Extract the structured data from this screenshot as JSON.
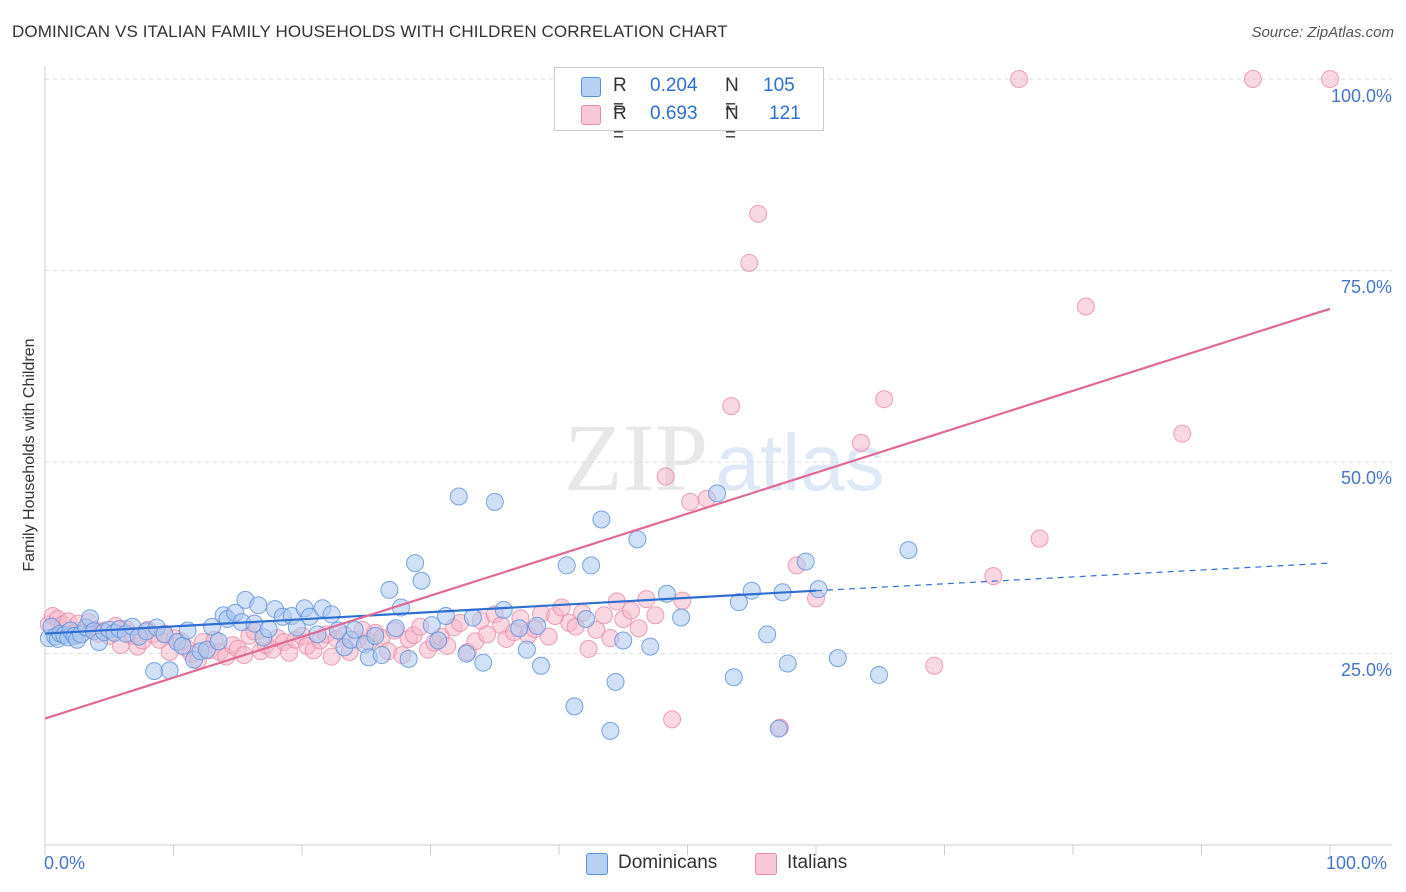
{
  "title": "DOMINICAN VS ITALIAN FAMILY HOUSEHOLDS WITH CHILDREN CORRELATION CHART",
  "source": "Source: ZipAtlas.com",
  "watermark": {
    "zip": "ZIP",
    "atlas": "atlas"
  },
  "legend": {
    "dominicans": {
      "r_label": "R =",
      "r_value": "0.204",
      "n_label": "N =",
      "n_value": "105"
    },
    "italians": {
      "r_label": "R =",
      "r_value": "0.693",
      "n_label": "N =",
      "n_value": "121"
    }
  },
  "bottom_legend": {
    "dominicans": "Dominicans",
    "italians": "Italians"
  },
  "colors": {
    "dominicans_fill": "#a9c8f0",
    "dominicans_stroke": "#5b8fd8",
    "dominicans_line": "#2e6fd0",
    "italians_fill": "#f6b8cb",
    "italians_stroke": "#e88aa8",
    "italians_line": "#e06a96",
    "tick_text": "#4477cc",
    "grid": "#dddddd"
  },
  "chart_data": {
    "type": "scatter",
    "title": "DOMINICAN VS ITALIAN FAMILY HOUSEHOLDS WITH CHILDREN CORRELATION CHART",
    "xlabel": "",
    "ylabel": "Family Households with Children",
    "xlim": [
      0,
      100
    ],
    "ylim": [
      0,
      100
    ],
    "x_tick_labels": [
      "0.0%",
      "100.0%"
    ],
    "y_ticks": [
      {
        "value": 25,
        "label": "25.0%"
      },
      {
        "value": 50,
        "label": "50.0%"
      },
      {
        "value": 75,
        "label": "75.0%"
      },
      {
        "value": 100,
        "label": "100.0%"
      }
    ],
    "series": [
      {
        "name": "Dominicans",
        "r": 0.204,
        "n": 105,
        "trend": {
          "x": [
            0,
            60
          ],
          "y": [
            27.6,
            33.2
          ]
        },
        "trend_extension": {
          "x": [
            60,
            100
          ],
          "y": [
            33.2,
            36.8
          ]
        },
        "points": [
          [
            0.3,
            27.0
          ],
          [
            0.5,
            28.5
          ],
          [
            0.8,
            27.2
          ],
          [
            1.0,
            26.9
          ],
          [
            1.2,
            27.6
          ],
          [
            1.5,
            27.4
          ],
          [
            1.8,
            27.1
          ],
          [
            2.0,
            28.0
          ],
          [
            2.3,
            27.3
          ],
          [
            2.5,
            26.8
          ],
          [
            2.8,
            27.5
          ],
          [
            3.2,
            28.4
          ],
          [
            3.5,
            29.6
          ],
          [
            3.8,
            27.9
          ],
          [
            4.2,
            26.5
          ],
          [
            4.6,
            27.8
          ],
          [
            5.0,
            28.1
          ],
          [
            5.4,
            27.7
          ],
          [
            5.8,
            28.2
          ],
          [
            6.3,
            27.6
          ],
          [
            6.8,
            28.5
          ],
          [
            7.3,
            27.2
          ],
          [
            7.9,
            27.9
          ],
          [
            8.5,
            22.7
          ],
          [
            8.7,
            28.4
          ],
          [
            9.3,
            27.5
          ],
          [
            9.7,
            22.8
          ],
          [
            10.3,
            26.5
          ],
          [
            10.7,
            26.0
          ],
          [
            11.1,
            28.0
          ],
          [
            11.6,
            24.2
          ],
          [
            12.1,
            25.3
          ],
          [
            12.6,
            25.5
          ],
          [
            13.0,
            28.5
          ],
          [
            13.5,
            26.6
          ],
          [
            13.9,
            30.0
          ],
          [
            14.2,
            29.5
          ],
          [
            14.8,
            30.3
          ],
          [
            15.3,
            29.1
          ],
          [
            15.6,
            32.0
          ],
          [
            16.3,
            28.9
          ],
          [
            16.6,
            31.3
          ],
          [
            17.0,
            27.1
          ],
          [
            17.4,
            28.2
          ],
          [
            17.9,
            30.8
          ],
          [
            18.5,
            29.8
          ],
          [
            19.2,
            29.9
          ],
          [
            19.6,
            28.4
          ],
          [
            20.2,
            30.9
          ],
          [
            20.6,
            29.8
          ],
          [
            21.2,
            27.5
          ],
          [
            21.6,
            30.9
          ],
          [
            22.3,
            30.1
          ],
          [
            22.8,
            28.0
          ],
          [
            23.3,
            25.8
          ],
          [
            23.8,
            26.8
          ],
          [
            24.1,
            28.1
          ],
          [
            24.9,
            26.2
          ],
          [
            25.2,
            24.5
          ],
          [
            25.7,
            27.3
          ],
          [
            26.2,
            24.8
          ],
          [
            26.8,
            33.3
          ],
          [
            27.3,
            28.3
          ],
          [
            27.7,
            31.0
          ],
          [
            28.3,
            24.3
          ],
          [
            28.8,
            36.8
          ],
          [
            29.3,
            34.5
          ],
          [
            30.1,
            28.7
          ],
          [
            30.6,
            26.7
          ],
          [
            31.2,
            29.9
          ],
          [
            32.2,
            45.5
          ],
          [
            32.8,
            25.0
          ],
          [
            33.3,
            29.7
          ],
          [
            34.1,
            23.8
          ],
          [
            35.0,
            44.8
          ],
          [
            35.7,
            30.7
          ],
          [
            36.9,
            28.3
          ],
          [
            37.5,
            25.5
          ],
          [
            38.3,
            28.6
          ],
          [
            38.6,
            23.4
          ],
          [
            40.6,
            36.5
          ],
          [
            41.2,
            18.1
          ],
          [
            42.1,
            29.5
          ],
          [
            42.5,
            36.5
          ],
          [
            43.3,
            42.5
          ],
          [
            44.0,
            14.9
          ],
          [
            44.4,
            21.3
          ],
          [
            45.0,
            26.7
          ],
          [
            46.1,
            39.9
          ],
          [
            47.1,
            25.9
          ],
          [
            48.4,
            32.8
          ],
          [
            49.5,
            29.7
          ],
          [
            52.3,
            45.9
          ],
          [
            53.6,
            21.9
          ],
          [
            54.0,
            31.7
          ],
          [
            55.0,
            33.2
          ],
          [
            56.2,
            27.5
          ],
          [
            57.1,
            15.2
          ],
          [
            57.4,
            33.0
          ],
          [
            57.8,
            23.7
          ],
          [
            59.2,
            37.0
          ],
          [
            60.2,
            33.4
          ],
          [
            61.7,
            24.4
          ],
          [
            64.9,
            22.2
          ],
          [
            67.2,
            38.5
          ]
        ]
      },
      {
        "name": "Italians",
        "r": 0.693,
        "n": 121,
        "trend": {
          "x": [
            0,
            100
          ],
          "y": [
            16.5,
            70.0
          ]
        },
        "points": [
          [
            0.3,
            28.8
          ],
          [
            0.6,
            29.9
          ],
          [
            1.0,
            29.5
          ],
          [
            1.4,
            28.8
          ],
          [
            1.8,
            29.2
          ],
          [
            2.2,
            27.6
          ],
          [
            2.6,
            28.9
          ],
          [
            3.0,
            27.8
          ],
          [
            3.4,
            29.1
          ],
          [
            3.8,
            28.1
          ],
          [
            4.2,
            27.6
          ],
          [
            4.6,
            28.0
          ],
          [
            5.0,
            27.3
          ],
          [
            5.5,
            28.6
          ],
          [
            5.9,
            26.1
          ],
          [
            6.3,
            28.2
          ],
          [
            6.8,
            27.3
          ],
          [
            7.2,
            25.9
          ],
          [
            7.6,
            26.7
          ],
          [
            8.0,
            28.1
          ],
          [
            8.4,
            27.5
          ],
          [
            8.9,
            26.8
          ],
          [
            9.3,
            27.6
          ],
          [
            9.7,
            25.2
          ],
          [
            10.1,
            27.0
          ],
          [
            10.6,
            26.6
          ],
          [
            11.0,
            25.7
          ],
          [
            11.4,
            24.9
          ],
          [
            11.9,
            24.1
          ],
          [
            12.3,
            26.5
          ],
          [
            12.8,
            25.4
          ],
          [
            13.2,
            26.8
          ],
          [
            13.6,
            25.2
          ],
          [
            14.1,
            24.6
          ],
          [
            14.6,
            26.1
          ],
          [
            15.0,
            25.6
          ],
          [
            15.5,
            24.8
          ],
          [
            15.9,
            27.3
          ],
          [
            16.3,
            27.9
          ],
          [
            16.8,
            25.3
          ],
          [
            17.2,
            26.1
          ],
          [
            17.7,
            25.5
          ],
          [
            18.1,
            27.0
          ],
          [
            18.6,
            26.5
          ],
          [
            19.0,
            25.1
          ],
          [
            19.5,
            26.8
          ],
          [
            20.0,
            27.3
          ],
          [
            20.4,
            26.0
          ],
          [
            20.9,
            25.4
          ],
          [
            21.4,
            26.7
          ],
          [
            21.9,
            27.5
          ],
          [
            22.3,
            24.6
          ],
          [
            22.7,
            26.9
          ],
          [
            23.3,
            27.4
          ],
          [
            23.7,
            25.2
          ],
          [
            24.3,
            26.8
          ],
          [
            24.7,
            28.1
          ],
          [
            25.2,
            26.5
          ],
          [
            25.7,
            27.7
          ],
          [
            26.2,
            27.0
          ],
          [
            26.7,
            25.3
          ],
          [
            27.2,
            28.0
          ],
          [
            27.8,
            24.8
          ],
          [
            28.3,
            26.9
          ],
          [
            28.7,
            27.4
          ],
          [
            29.2,
            28.5
          ],
          [
            29.8,
            25.5
          ],
          [
            30.3,
            26.4
          ],
          [
            30.8,
            27.2
          ],
          [
            31.3,
            26.0
          ],
          [
            31.8,
            28.4
          ],
          [
            32.3,
            29.0
          ],
          [
            32.9,
            25.2
          ],
          [
            33.5,
            26.6
          ],
          [
            33.9,
            29.3
          ],
          [
            34.4,
            27.5
          ],
          [
            35.0,
            30.1
          ],
          [
            35.5,
            28.7
          ],
          [
            35.9,
            26.9
          ],
          [
            36.5,
            27.8
          ],
          [
            37.0,
            29.6
          ],
          [
            37.6,
            27.4
          ],
          [
            38.1,
            28.2
          ],
          [
            38.6,
            30.2
          ],
          [
            39.2,
            27.2
          ],
          [
            39.7,
            29.9
          ],
          [
            40.2,
            31.0
          ],
          [
            40.8,
            29.0
          ],
          [
            41.3,
            28.5
          ],
          [
            41.8,
            30.3
          ],
          [
            42.3,
            25.6
          ],
          [
            42.9,
            28.1
          ],
          [
            43.5,
            30.0
          ],
          [
            44.0,
            27.0
          ],
          [
            44.5,
            31.8
          ],
          [
            45.0,
            29.5
          ],
          [
            45.6,
            30.6
          ],
          [
            46.2,
            28.3
          ],
          [
            46.8,
            32.1
          ],
          [
            47.5,
            30.0
          ],
          [
            48.3,
            48.1
          ],
          [
            48.8,
            16.4
          ],
          [
            49.6,
            31.9
          ],
          [
            50.2,
            44.8
          ],
          [
            51.5,
            45.2
          ],
          [
            53.4,
            57.3
          ],
          [
            54.8,
            76.0
          ],
          [
            55.5,
            82.4
          ],
          [
            57.2,
            15.3
          ],
          [
            58.5,
            36.5
          ],
          [
            60.0,
            32.2
          ],
          [
            63.5,
            52.5
          ],
          [
            65.3,
            58.2
          ],
          [
            69.2,
            23.4
          ],
          [
            73.8,
            35.1
          ],
          [
            75.8,
            100.0
          ],
          [
            77.4,
            40.0
          ],
          [
            81.0,
            70.3
          ],
          [
            88.5,
            53.7
          ],
          [
            94.0,
            100.0
          ],
          [
            100.0,
            100.0
          ]
        ]
      }
    ]
  }
}
